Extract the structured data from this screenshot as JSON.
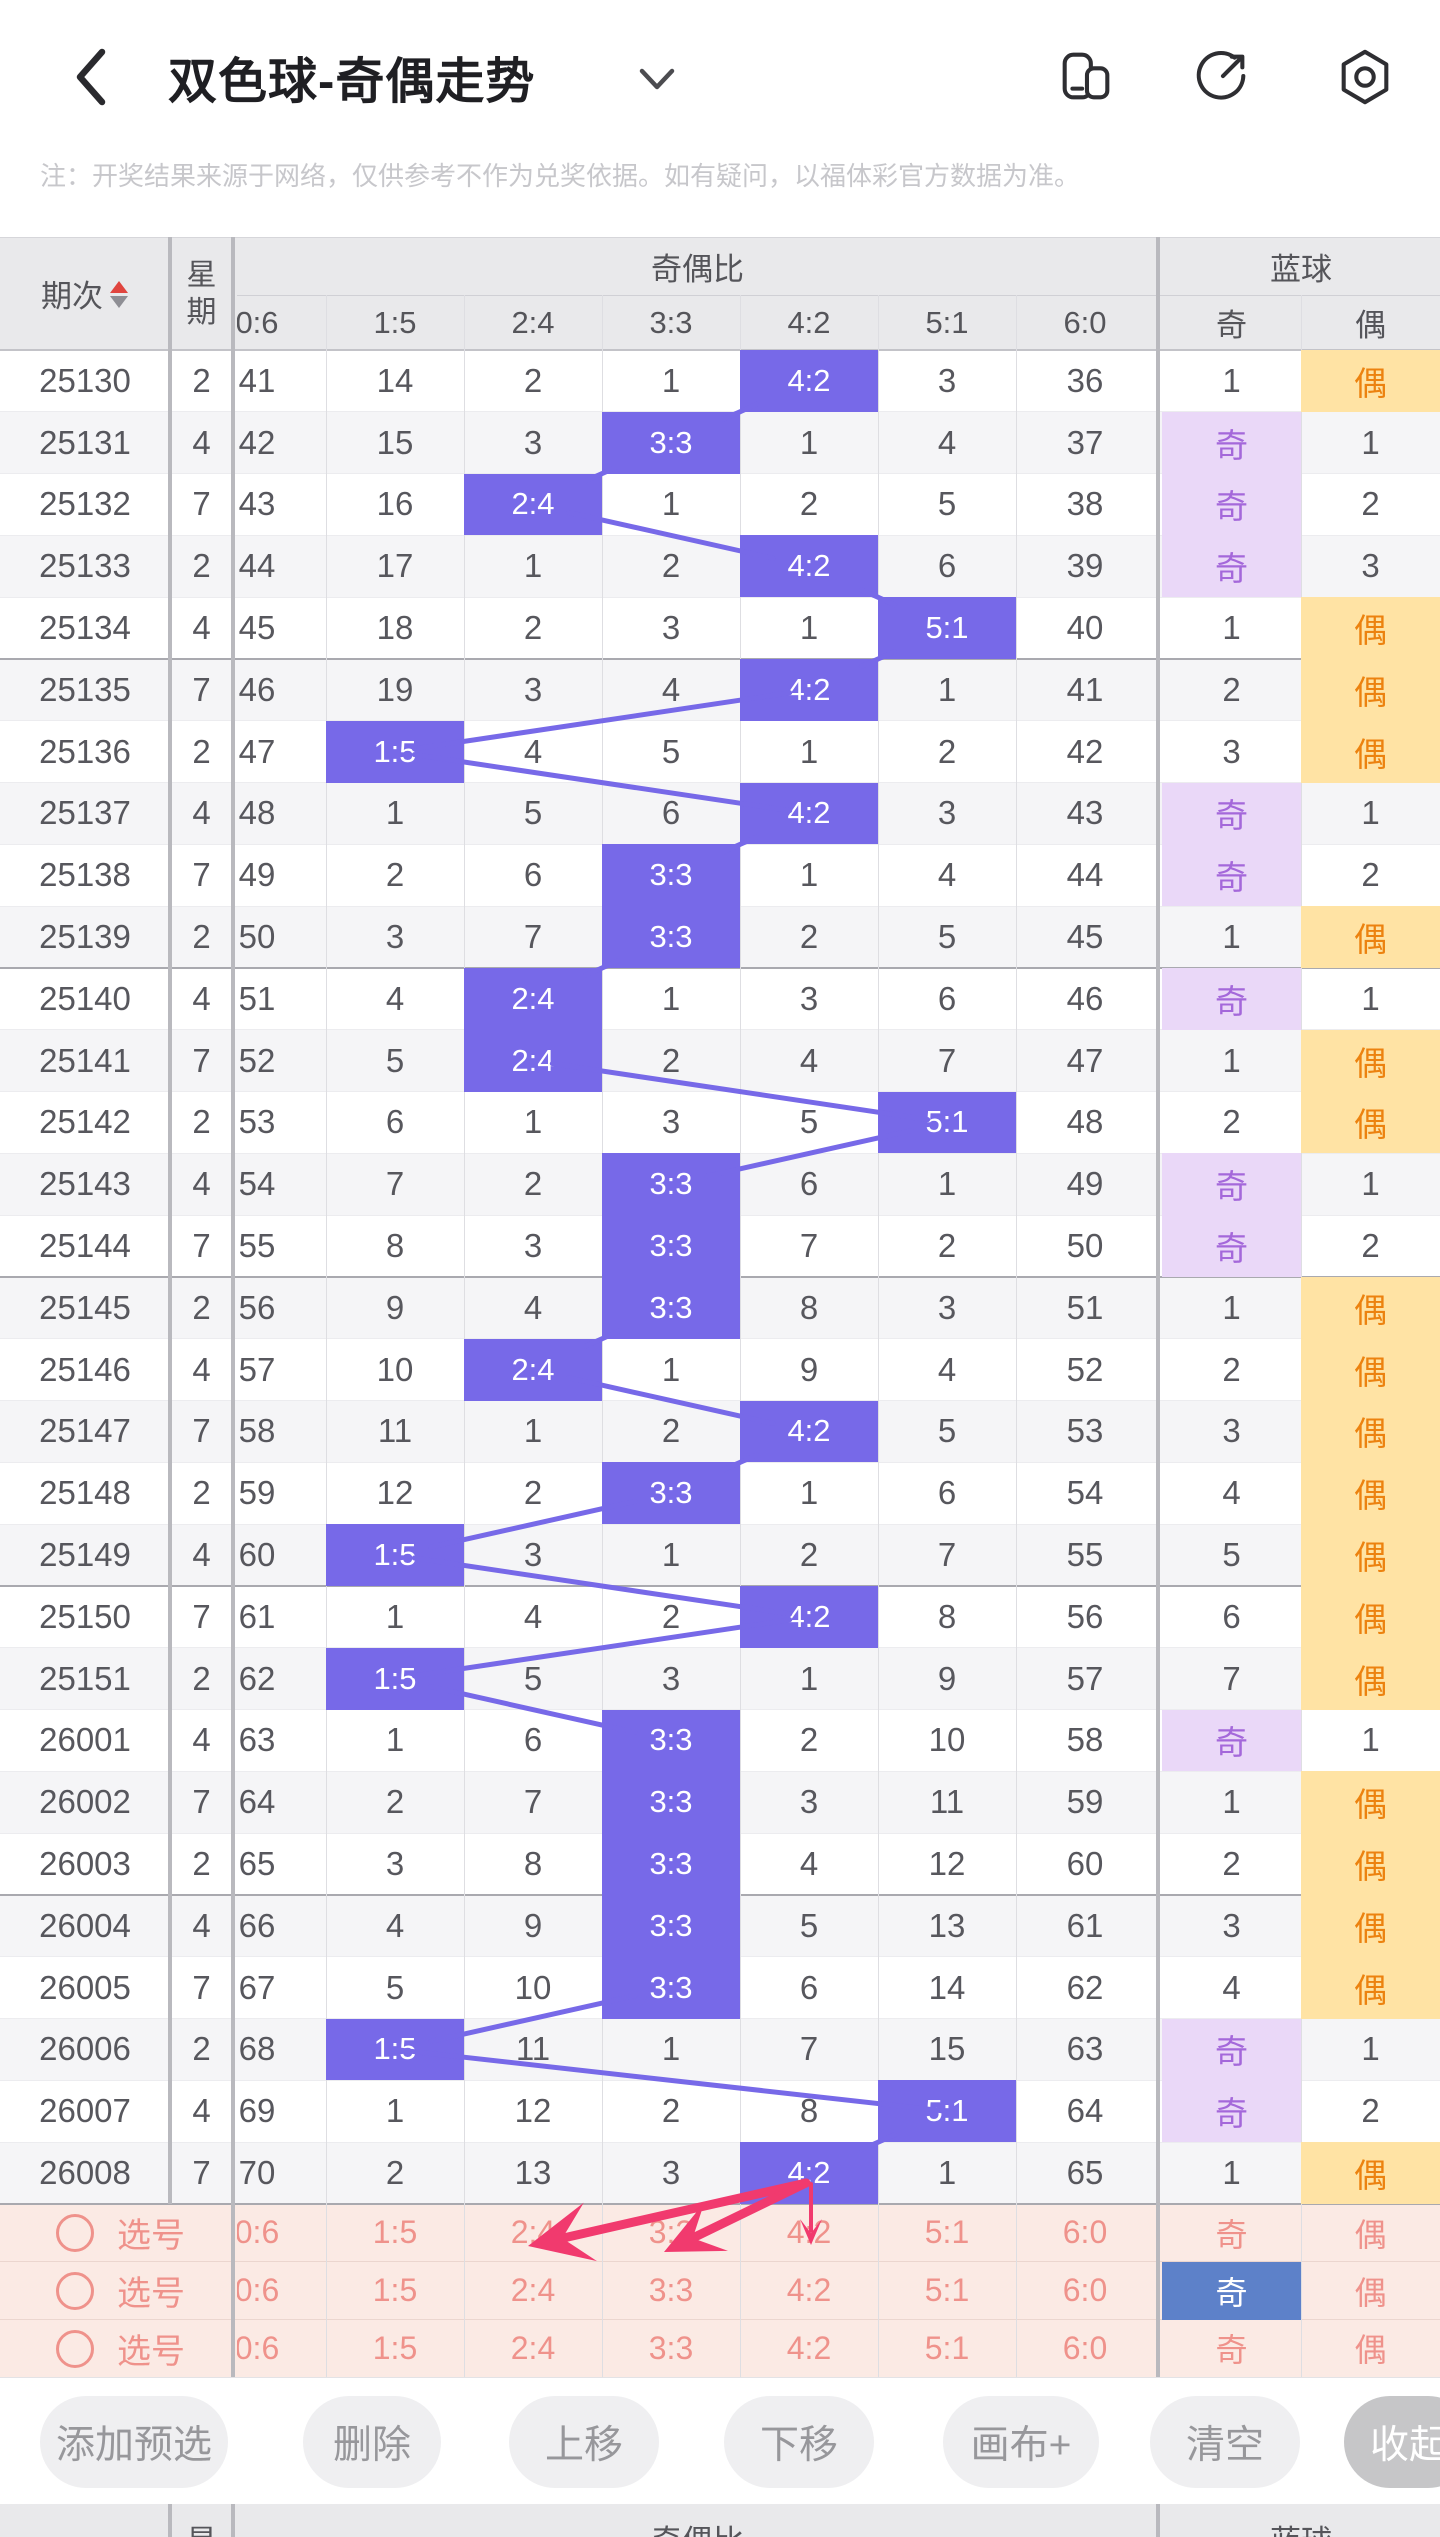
{
  "nav": {
    "title": "双色球-奇偶走势",
    "icons": [
      "back-icon",
      "chevron-down-icon",
      "floating-window-icon",
      "share-icon",
      "settings-icon"
    ]
  },
  "notice": "注：开奖结果来源于网络，仅供参考不作为兑奖依据。如有疑问，以福体彩官方数据为准。",
  "table": {
    "headers": {
      "period": "期次",
      "weekday": "星期",
      "ratio_group": "奇偶比",
      "blue_group": "蓝球",
      "ratio_cols": [
        "0:6",
        "1:5",
        "2:4",
        "3:3",
        "4:2",
        "5:1",
        "6:0"
      ],
      "blue_cols": [
        "奇",
        "偶"
      ]
    },
    "rows": [
      {
        "period": "25130",
        "week": "2",
        "cells": [
          "41",
          "14",
          "2",
          "1",
          "4:2",
          "3",
          "36"
        ],
        "hl": 4,
        "ball": "偶",
        "count": "1"
      },
      {
        "period": "25131",
        "week": "4",
        "cells": [
          "42",
          "15",
          "3",
          "3:3",
          "1",
          "4",
          "37"
        ],
        "hl": 3,
        "ball": "奇",
        "count": "1"
      },
      {
        "period": "25132",
        "week": "7",
        "cells": [
          "43",
          "16",
          "2:4",
          "1",
          "2",
          "5",
          "38"
        ],
        "hl": 2,
        "ball": "奇",
        "count": "2"
      },
      {
        "period": "25133",
        "week": "2",
        "cells": [
          "44",
          "17",
          "1",
          "2",
          "4:2",
          "6",
          "39"
        ],
        "hl": 4,
        "ball": "奇",
        "count": "3"
      },
      {
        "period": "25134",
        "week": "4",
        "cells": [
          "45",
          "18",
          "2",
          "3",
          "1",
          "5:1",
          "40"
        ],
        "hl": 5,
        "ball": "偶",
        "count": "1"
      },
      {
        "period": "25135",
        "week": "7",
        "cells": [
          "46",
          "19",
          "3",
          "4",
          "4:2",
          "1",
          "41"
        ],
        "hl": 4,
        "ball": "偶",
        "count": "2"
      },
      {
        "period": "25136",
        "week": "2",
        "cells": [
          "47",
          "1:5",
          "4",
          "5",
          "1",
          "2",
          "42"
        ],
        "hl": 1,
        "ball": "偶",
        "count": "3"
      },
      {
        "period": "25137",
        "week": "4",
        "cells": [
          "48",
          "1",
          "5",
          "6",
          "4:2",
          "3",
          "43"
        ],
        "hl": 4,
        "ball": "奇",
        "count": "1"
      },
      {
        "period": "25138",
        "week": "7",
        "cells": [
          "49",
          "2",
          "6",
          "3:3",
          "1",
          "4",
          "44"
        ],
        "hl": 3,
        "ball": "奇",
        "count": "2"
      },
      {
        "period": "25139",
        "week": "2",
        "cells": [
          "50",
          "3",
          "7",
          "3:3",
          "2",
          "5",
          "45"
        ],
        "hl": 3,
        "ball": "偶",
        "count": "1"
      },
      {
        "period": "25140",
        "week": "4",
        "cells": [
          "51",
          "4",
          "2:4",
          "1",
          "3",
          "6",
          "46"
        ],
        "hl": 2,
        "ball": "奇",
        "count": "1"
      },
      {
        "period": "25141",
        "week": "7",
        "cells": [
          "52",
          "5",
          "2:4",
          "2",
          "4",
          "7",
          "47"
        ],
        "hl": 2,
        "ball": "偶",
        "count": "1"
      },
      {
        "period": "25142",
        "week": "2",
        "cells": [
          "53",
          "6",
          "1",
          "3",
          "5",
          "5:1",
          "48"
        ],
        "hl": 5,
        "ball": "偶",
        "count": "2"
      },
      {
        "period": "25143",
        "week": "4",
        "cells": [
          "54",
          "7",
          "2",
          "3:3",
          "6",
          "1",
          "49"
        ],
        "hl": 3,
        "ball": "奇",
        "count": "1"
      },
      {
        "period": "25144",
        "week": "7",
        "cells": [
          "55",
          "8",
          "3",
          "3:3",
          "7",
          "2",
          "50"
        ],
        "hl": 3,
        "ball": "奇",
        "count": "2"
      },
      {
        "period": "25145",
        "week": "2",
        "cells": [
          "56",
          "9",
          "4",
          "3:3",
          "8",
          "3",
          "51"
        ],
        "hl": 3,
        "ball": "偶",
        "count": "1"
      },
      {
        "period": "25146",
        "week": "4",
        "cells": [
          "57",
          "10",
          "2:4",
          "1",
          "9",
          "4",
          "52"
        ],
        "hl": 2,
        "ball": "偶",
        "count": "2"
      },
      {
        "period": "25147",
        "week": "7",
        "cells": [
          "58",
          "11",
          "1",
          "2",
          "4:2",
          "5",
          "53"
        ],
        "hl": 4,
        "ball": "偶",
        "count": "3"
      },
      {
        "period": "25148",
        "week": "2",
        "cells": [
          "59",
          "12",
          "2",
          "3:3",
          "1",
          "6",
          "54"
        ],
        "hl": 3,
        "ball": "偶",
        "count": "4"
      },
      {
        "period": "25149",
        "week": "4",
        "cells": [
          "60",
          "1:5",
          "3",
          "1",
          "2",
          "7",
          "55"
        ],
        "hl": 1,
        "ball": "偶",
        "count": "5"
      },
      {
        "period": "25150",
        "week": "7",
        "cells": [
          "61",
          "1",
          "4",
          "2",
          "4:2",
          "8",
          "56"
        ],
        "hl": 4,
        "ball": "偶",
        "count": "6"
      },
      {
        "period": "25151",
        "week": "2",
        "cells": [
          "62",
          "1:5",
          "5",
          "3",
          "1",
          "9",
          "57"
        ],
        "hl": 1,
        "ball": "偶",
        "count": "7"
      },
      {
        "period": "26001",
        "week": "4",
        "cells": [
          "63",
          "1",
          "6",
          "3:3",
          "2",
          "10",
          "58"
        ],
        "hl": 3,
        "ball": "奇",
        "count": "1"
      },
      {
        "period": "26002",
        "week": "7",
        "cells": [
          "64",
          "2",
          "7",
          "3:3",
          "3",
          "11",
          "59"
        ],
        "hl": 3,
        "ball": "偶",
        "count": "1"
      },
      {
        "period": "26003",
        "week": "2",
        "cells": [
          "65",
          "3",
          "8",
          "3:3",
          "4",
          "12",
          "60"
        ],
        "hl": 3,
        "ball": "偶",
        "count": "2"
      },
      {
        "period": "26004",
        "week": "4",
        "cells": [
          "66",
          "4",
          "9",
          "3:3",
          "5",
          "13",
          "61"
        ],
        "hl": 3,
        "ball": "偶",
        "count": "3"
      },
      {
        "period": "26005",
        "week": "7",
        "cells": [
          "67",
          "5",
          "10",
          "3:3",
          "6",
          "14",
          "62"
        ],
        "hl": 3,
        "ball": "偶",
        "count": "4"
      },
      {
        "period": "26006",
        "week": "2",
        "cells": [
          "68",
          "1:5",
          "11",
          "1",
          "7",
          "15",
          "63"
        ],
        "hl": 1,
        "ball": "奇",
        "count": "1"
      },
      {
        "period": "26007",
        "week": "4",
        "cells": [
          "69",
          "1",
          "12",
          "2",
          "8",
          "5:1",
          "64"
        ],
        "hl": 5,
        "ball": "奇",
        "count": "2"
      },
      {
        "period": "26008",
        "week": "7",
        "cells": [
          "70",
          "2",
          "13",
          "3",
          "4:2",
          "1",
          "65"
        ],
        "hl": 4,
        "ball": "偶",
        "count": "1"
      }
    ],
    "selection_rows": [
      {
        "label": "选号",
        "cells": [
          "0:6",
          "1:5",
          "2:4",
          "3:3",
          "4:2",
          "5:1",
          "6:0",
          "奇",
          "偶"
        ],
        "selected": null
      },
      {
        "label": "选号",
        "cells": [
          "0:6",
          "1:5",
          "2:4",
          "3:3",
          "4:2",
          "5:1",
          "6:0",
          "奇",
          "偶"
        ],
        "selected": "奇"
      },
      {
        "label": "选号",
        "cells": [
          "0:6",
          "1:5",
          "2:4",
          "3:3",
          "4:2",
          "5:1",
          "6:0",
          "奇",
          "偶"
        ],
        "selected": null
      }
    ]
  },
  "toolbar": {
    "buttons": [
      "添加预选",
      "删除",
      "上移",
      "下移",
      "画布+",
      "清空",
      "收起"
    ]
  },
  "colors": {
    "highlight": "#7769e8",
    "connector": "#7769e8",
    "odd_ball_bg": "#ead8f8",
    "odd_ball_text": "#a468da",
    "even_ball_bg": "#ffe3a4",
    "even_ball_text": "#ec820f",
    "selection_bg": "#fbeae4",
    "selection_text": "#ef928b",
    "selected_blue": "#5d81c9",
    "arrow": "#f13a6e",
    "sort_asc": "#e0453f",
    "sort_desc": "#8e8e94",
    "header_bg": "#e9e9eb",
    "stripe": "#f5f5f7",
    "text": "#57575d"
  }
}
